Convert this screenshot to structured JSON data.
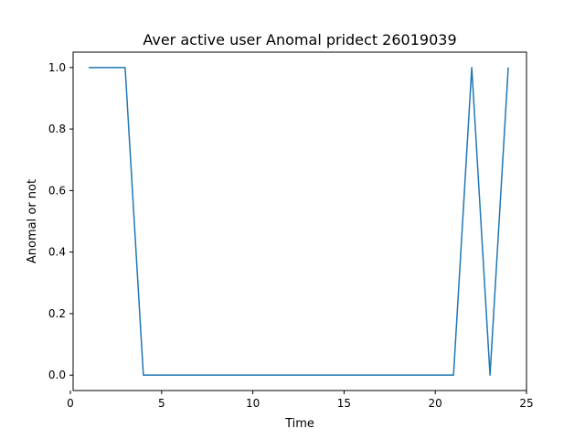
{
  "chart_data": {
    "type": "line",
    "title": "Aver active user Anomal pridect 26019039",
    "xlabel": "Time",
    "ylabel": "Anomal or not",
    "xlim": [
      0.15,
      25.0
    ],
    "ylim": [
      -0.05,
      1.05
    ],
    "xticks": [
      0,
      5,
      10,
      15,
      20,
      25
    ],
    "yticks": [
      0.0,
      0.2,
      0.4,
      0.6,
      0.8,
      1.0
    ],
    "xtick_labels": [
      "0",
      "5",
      "10",
      "15",
      "20",
      "25"
    ],
    "ytick_labels": [
      "0.0",
      "0.2",
      "0.4",
      "0.6",
      "0.8",
      "1.0"
    ],
    "grid": false,
    "series": [
      {
        "color": "#1f77b4",
        "x": [
          1,
          2,
          3,
          4,
          5,
          6,
          7,
          8,
          9,
          10,
          11,
          12,
          13,
          14,
          15,
          16,
          17,
          18,
          19,
          20,
          21,
          22,
          23,
          24
        ],
        "y": [
          1,
          1,
          1,
          0,
          0,
          0,
          0,
          0,
          0,
          0,
          0,
          0,
          0,
          0,
          0,
          0,
          0,
          0,
          0,
          0,
          0,
          1,
          0,
          1
        ]
      }
    ]
  }
}
